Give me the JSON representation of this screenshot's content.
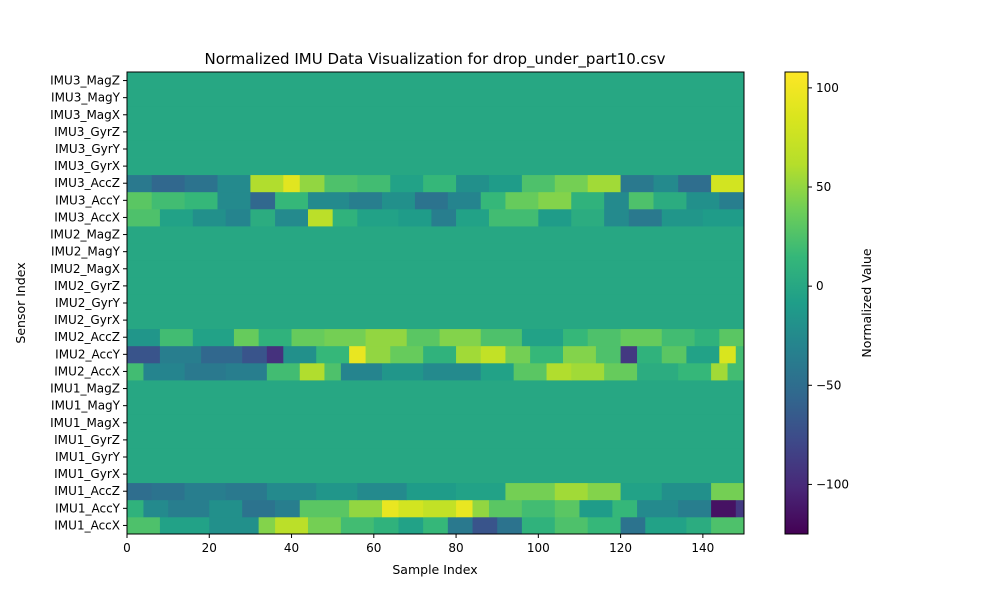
{
  "chart_data": {
    "type": "heatmap",
    "title": "Normalized IMU Data Visualization for drop_under_part10.csv",
    "xlabel": "Sample Index",
    "ylabel": "Sensor Index",
    "colorbar_label": "Normalized Value",
    "colormap": "viridis",
    "n_samples": 150,
    "xlim": [
      0,
      150
    ],
    "x_ticks": [
      0,
      20,
      40,
      60,
      80,
      100,
      120,
      140
    ],
    "clim": [
      -125,
      108
    ],
    "colorbar_ticks": [
      100,
      50,
      0,
      -50,
      -100
    ],
    "sensors": [
      "IMU1_AccX",
      "IMU1_AccY",
      "IMU1_AccZ",
      "IMU1_GyrX",
      "IMU1_GyrY",
      "IMU1_GyrZ",
      "IMU1_MagX",
      "IMU1_MagY",
      "IMU1_MagZ",
      "IMU2_AccX",
      "IMU2_AccY",
      "IMU2_AccZ",
      "IMU2_GyrX",
      "IMU2_GyrY",
      "IMU2_GyrZ",
      "IMU2_MagX",
      "IMU2_MagY",
      "IMU2_MagZ",
      "IMU3_AccX",
      "IMU3_AccY",
      "IMU3_AccZ",
      "IMU3_GyrX",
      "IMU3_GyrY",
      "IMU3_GyrZ",
      "IMU3_MagX",
      "IMU3_MagY",
      "IMU3_MagZ"
    ],
    "rows": {
      "IMU1_AccX": [
        [
          0,
          8,
          25
        ],
        [
          8,
          20,
          -5
        ],
        [
          20,
          32,
          -20
        ],
        [
          32,
          36,
          45
        ],
        [
          36,
          44,
          65
        ],
        [
          44,
          52,
          40
        ],
        [
          52,
          60,
          20
        ],
        [
          60,
          66,
          10
        ],
        [
          66,
          72,
          -5
        ],
        [
          72,
          78,
          15
        ],
        [
          78,
          84,
          -40
        ],
        [
          84,
          90,
          -70
        ],
        [
          90,
          96,
          -45
        ],
        [
          96,
          104,
          10
        ],
        [
          104,
          112,
          25
        ],
        [
          112,
          120,
          15
        ],
        [
          120,
          126,
          -45
        ],
        [
          126,
          136,
          -5
        ],
        [
          136,
          142,
          5
        ],
        [
          142,
          150,
          25
        ]
      ],
      "IMU1_AccY": [
        [
          0,
          4,
          10
        ],
        [
          4,
          10,
          -25
        ],
        [
          10,
          20,
          -35
        ],
        [
          20,
          28,
          -20
        ],
        [
          28,
          36,
          -45
        ],
        [
          36,
          42,
          -35
        ],
        [
          42,
          54,
          30
        ],
        [
          54,
          62,
          50
        ],
        [
          62,
          66,
          95
        ],
        [
          66,
          72,
          80
        ],
        [
          72,
          80,
          70
        ],
        [
          80,
          84,
          95
        ],
        [
          84,
          88,
          50
        ],
        [
          88,
          96,
          30
        ],
        [
          96,
          104,
          20
        ],
        [
          104,
          110,
          30
        ],
        [
          110,
          118,
          -10
        ],
        [
          118,
          124,
          15
        ],
        [
          124,
          134,
          -25
        ],
        [
          134,
          142,
          -35
        ],
        [
          142,
          148,
          -115
        ],
        [
          148,
          150,
          -90
        ]
      ],
      "IMU1_AccZ": [
        [
          0,
          6,
          -50
        ],
        [
          6,
          14,
          -45
        ],
        [
          14,
          24,
          -35
        ],
        [
          24,
          34,
          -40
        ],
        [
          34,
          46,
          -25
        ],
        [
          46,
          56,
          -15
        ],
        [
          56,
          68,
          -25
        ],
        [
          68,
          80,
          -10
        ],
        [
          80,
          92,
          -5
        ],
        [
          92,
          104,
          40
        ],
        [
          104,
          112,
          55
        ],
        [
          112,
          120,
          45
        ],
        [
          120,
          130,
          -5
        ],
        [
          130,
          142,
          -20
        ],
        [
          142,
          150,
          40
        ]
      ],
      "IMU1_GyrX": [
        [
          0,
          150,
          0
        ]
      ],
      "IMU1_GyrY": [
        [
          0,
          150,
          0
        ]
      ],
      "IMU1_GyrZ": [
        [
          0,
          150,
          0
        ]
      ],
      "IMU1_MagX": [
        [
          0,
          150,
          0
        ]
      ],
      "IMU1_MagY": [
        [
          0,
          150,
          0
        ]
      ],
      "IMU1_MagZ": [
        [
          0,
          150,
          0
        ]
      ],
      "IMU2_AccX": [
        [
          0,
          4,
          20
        ],
        [
          4,
          14,
          -30
        ],
        [
          14,
          24,
          -40
        ],
        [
          24,
          34,
          -35
        ],
        [
          34,
          42,
          20
        ],
        [
          42,
          48,
          60
        ],
        [
          48,
          52,
          25
        ],
        [
          52,
          62,
          -30
        ],
        [
          62,
          72,
          -15
        ],
        [
          72,
          86,
          -25
        ],
        [
          86,
          94,
          -5
        ],
        [
          94,
          102,
          30
        ],
        [
          102,
          108,
          60
        ],
        [
          108,
          116,
          55
        ],
        [
          116,
          124,
          35
        ],
        [
          124,
          134,
          5
        ],
        [
          134,
          142,
          15
        ],
        [
          142,
          146,
          55
        ],
        [
          146,
          150,
          20
        ]
      ],
      "IMU2_AccY": [
        [
          0,
          8,
          -70
        ],
        [
          8,
          18,
          -35
        ],
        [
          18,
          28,
          -55
        ],
        [
          28,
          34,
          -70
        ],
        [
          34,
          38,
          -95
        ],
        [
          38,
          46,
          -20
        ],
        [
          46,
          54,
          15
        ],
        [
          54,
          58,
          95
        ],
        [
          58,
          64,
          50
        ],
        [
          64,
          72,
          35
        ],
        [
          72,
          80,
          10
        ],
        [
          80,
          86,
          55
        ],
        [
          86,
          92,
          70
        ],
        [
          92,
          98,
          40
        ],
        [
          98,
          106,
          15
        ],
        [
          106,
          114,
          45
        ],
        [
          114,
          120,
          25
        ],
        [
          120,
          124,
          -90
        ],
        [
          124,
          130,
          10
        ],
        [
          130,
          136,
          30
        ],
        [
          136,
          144,
          -5
        ],
        [
          144,
          148,
          85
        ],
        [
          148,
          150,
          20
        ]
      ],
      "IMU2_AccZ": [
        [
          0,
          8,
          -15
        ],
        [
          8,
          16,
          20
        ],
        [
          16,
          26,
          -5
        ],
        [
          26,
          32,
          35
        ],
        [
          32,
          40,
          10
        ],
        [
          40,
          48,
          35
        ],
        [
          48,
          58,
          40
        ],
        [
          58,
          68,
          50
        ],
        [
          68,
          76,
          30
        ],
        [
          76,
          86,
          45
        ],
        [
          86,
          96,
          25
        ],
        [
          96,
          106,
          -5
        ],
        [
          106,
          112,
          15
        ],
        [
          112,
          120,
          25
        ],
        [
          120,
          130,
          35
        ],
        [
          130,
          138,
          20
        ],
        [
          138,
          144,
          10
        ],
        [
          144,
          150,
          30
        ]
      ],
      "IMU2_GyrX": [
        [
          0,
          150,
          0
        ]
      ],
      "IMU2_GyrY": [
        [
          0,
          150,
          0
        ]
      ],
      "IMU2_GyrZ": [
        [
          0,
          150,
          0
        ]
      ],
      "IMU2_MagX": [
        [
          0,
          150,
          0
        ]
      ],
      "IMU2_MagY": [
        [
          0,
          150,
          0
        ]
      ],
      "IMU2_MagZ": [
        [
          0,
          150,
          0
        ]
      ],
      "IMU3_AccX": [
        [
          0,
          8,
          25
        ],
        [
          8,
          16,
          -5
        ],
        [
          16,
          24,
          -20
        ],
        [
          24,
          30,
          -30
        ],
        [
          30,
          36,
          5
        ],
        [
          36,
          44,
          -25
        ],
        [
          44,
          50,
          65
        ],
        [
          50,
          56,
          10
        ],
        [
          56,
          66,
          -5
        ],
        [
          66,
          74,
          -10
        ],
        [
          74,
          80,
          -35
        ],
        [
          80,
          88,
          -5
        ],
        [
          88,
          100,
          20
        ],
        [
          100,
          108,
          -10
        ],
        [
          108,
          116,
          5
        ],
        [
          116,
          122,
          -25
        ],
        [
          122,
          130,
          -40
        ],
        [
          130,
          140,
          -15
        ],
        [
          140,
          150,
          -10
        ]
      ],
      "IMU3_AccY": [
        [
          0,
          6,
          30
        ],
        [
          6,
          14,
          20
        ],
        [
          14,
          22,
          15
        ],
        [
          22,
          30,
          -25
        ],
        [
          30,
          36,
          -55
        ],
        [
          36,
          44,
          15
        ],
        [
          44,
          54,
          -25
        ],
        [
          54,
          62,
          -35
        ],
        [
          62,
          70,
          -20
        ],
        [
          70,
          78,
          -45
        ],
        [
          78,
          86,
          -30
        ],
        [
          86,
          92,
          15
        ],
        [
          92,
          100,
          35
        ],
        [
          100,
          108,
          45
        ],
        [
          108,
          116,
          10
        ],
        [
          116,
          122,
          -25
        ],
        [
          122,
          128,
          25
        ],
        [
          128,
          136,
          5
        ],
        [
          136,
          144,
          -20
        ],
        [
          144,
          150,
          -35
        ]
      ],
      "IMU3_AccZ": [
        [
          0,
          6,
          -40
        ],
        [
          6,
          14,
          -55
        ],
        [
          14,
          22,
          -45
        ],
        [
          22,
          30,
          -25
        ],
        [
          30,
          38,
          60
        ],
        [
          38,
          42,
          90
        ],
        [
          42,
          48,
          50
        ],
        [
          48,
          56,
          25
        ],
        [
          56,
          64,
          20
        ],
        [
          64,
          72,
          -5
        ],
        [
          72,
          80,
          15
        ],
        [
          80,
          88,
          -20
        ],
        [
          88,
          96,
          -10
        ],
        [
          96,
          104,
          25
        ],
        [
          104,
          112,
          40
        ],
        [
          112,
          120,
          55
        ],
        [
          120,
          128,
          -40
        ],
        [
          128,
          134,
          -25
        ],
        [
          134,
          142,
          -50
        ],
        [
          142,
          150,
          80
        ]
      ],
      "IMU3_GyrX": [
        [
          0,
          150,
          0
        ]
      ],
      "IMU3_GyrY": [
        [
          0,
          150,
          0
        ]
      ],
      "IMU3_GyrZ": [
        [
          0,
          150,
          0
        ]
      ],
      "IMU3_MagX": [
        [
          0,
          150,
          0
        ]
      ],
      "IMU3_MagY": [
        [
          0,
          150,
          0
        ]
      ],
      "IMU3_MagZ": [
        [
          0,
          150,
          0
        ]
      ]
    }
  }
}
